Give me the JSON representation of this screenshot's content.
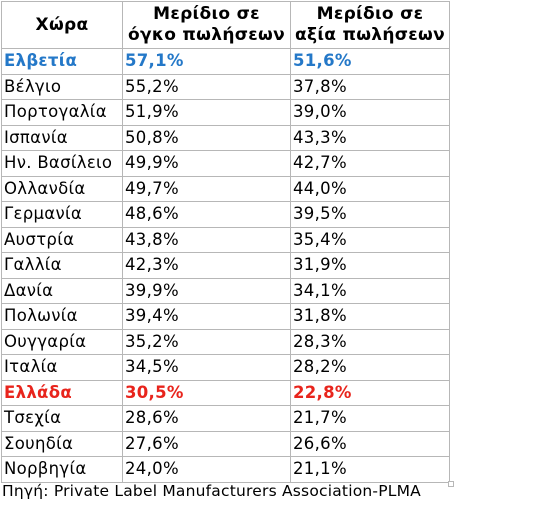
{
  "table": {
    "headers": {
      "country": "Χώρα",
      "volume": [
        "Μερίδιο σε",
        "όγκο πωλήσεων"
      ],
      "value": [
        "Μερίδιο σε",
        "αξία πωλήσεων"
      ]
    },
    "rows": [
      {
        "country": "Ελβετία",
        "volume": "57,1%",
        "value": "51,6%",
        "highlight": "#2478c8"
      },
      {
        "country": "Βέλγιο",
        "volume": "55,2%",
        "value": "37,8%"
      },
      {
        "country": "Πορτογαλία",
        "volume": "51,9%",
        "value": "39,0%"
      },
      {
        "country": "Ισπανία",
        "volume": "50,8%",
        "value": "43,3%"
      },
      {
        "country": "Ην. Βασίλειο",
        "volume": "49,9%",
        "value": "42,7%"
      },
      {
        "country": "Ολλανδία",
        "volume": "49,7%",
        "value": "44,0%"
      },
      {
        "country": "Γερμανία",
        "volume": "48,6%",
        "value": "39,5%"
      },
      {
        "country": "Αυστρία",
        "volume": "43,8%",
        "value": "35,4%"
      },
      {
        "country": "Γαλλία",
        "volume": "42,3%",
        "value": "31,9%"
      },
      {
        "country": "Δανία",
        "volume": "39,9%",
        "value": "34,1%"
      },
      {
        "country": "Πολωνία",
        "volume": "39,4%",
        "value": "31,8%"
      },
      {
        "country": "Ουγγαρία",
        "volume": "35,2%",
        "value": "28,3%"
      },
      {
        "country": "Ιταλία",
        "volume": "34,5%",
        "value": "28,2%"
      },
      {
        "country": "Ελλάδα",
        "volume": "30,5%",
        "value": "22,8%",
        "highlight": "#e8241c"
      },
      {
        "country": "Τσεχία",
        "volume": "28,6%",
        "value": "21,7%"
      },
      {
        "country": "Σουηδία",
        "volume": "27,6%",
        "value": "26,6%"
      },
      {
        "country": "Νορβηγία",
        "volume": "24,0%",
        "value": "21,1%"
      }
    ]
  },
  "source": "Πηγή: Private Label Manufacturers Association-PLMA"
}
